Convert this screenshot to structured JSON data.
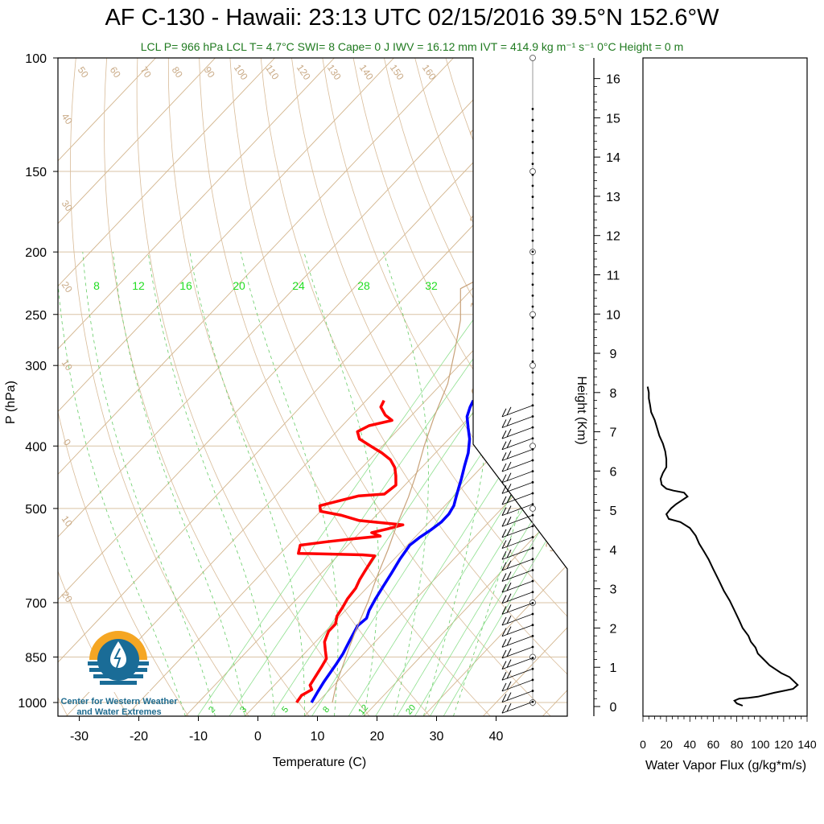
{
  "title": "AF C-130 - Hawaii: 23:13 UTC 02/15/2016  39.5°N 152.6°W",
  "subtitle": "LCL P= 966 hPa  LCL T= 4.7°C  SWI= 8  Cape= 0 J  IWV = 16.12 mm  IVT = 414.9 kg m⁻¹ s⁻¹  0°C Height = 0 m",
  "logo": {
    "line1": "Center for Western Weather",
    "line2": "and Water Extremes"
  },
  "chart_data": [
    {
      "type": "line",
      "name": "skew-t",
      "xlabel": "Temperature (C)",
      "ylabel": "P (hPa)",
      "xlim": [
        -34,
        50
      ],
      "ylim": [
        1050,
        100
      ],
      "y_scale": "log",
      "x_ticks": [
        -30,
        -20,
        -10,
        0,
        10,
        20,
        30,
        40
      ],
      "y_ticks": [
        100,
        150,
        200,
        250,
        300,
        400,
        500,
        700,
        850,
        1000
      ],
      "right_axis": {
        "label": "Height (Km)",
        "ticks": [
          0,
          1,
          2,
          3,
          4,
          5,
          6,
          7,
          8,
          9,
          10,
          11,
          12,
          13,
          14,
          15,
          16
        ]
      },
      "mixing_ratio_labels_top": [
        "8",
        "12",
        "16",
        "20",
        "24",
        "28",
        "32"
      ],
      "mixing_ratio_labels_bottom": [
        "2",
        "3",
        "5",
        "8",
        "12",
        "20"
      ],
      "dry_adiabat_labels": [
        "50",
        "60",
        "70",
        "80",
        "90",
        "100",
        "110",
        "120",
        "130",
        "140",
        "150",
        "160"
      ],
      "isotherm_labels": [
        "40",
        "30",
        "20",
        "10",
        "0",
        "10",
        "20"
      ],
      "moist_labels": [
        "30",
        "20",
        "10",
        "0",
        "10",
        "20",
        "30"
      ],
      "series": [
        {
          "color": "#0000ff",
          "points": [
            [
              9.0,
              1000
            ],
            [
              8.3,
              960
            ],
            [
              7.8,
              930
            ],
            [
              7.0,
              870
            ],
            [
              6.5,
              840
            ],
            [
              5.5,
              800
            ],
            [
              4.5,
              760
            ],
            [
              4.8,
              740
            ],
            [
              4.0,
              720
            ],
            [
              3.2,
              690
            ],
            [
              2.5,
              660
            ],
            [
              1.8,
              630
            ],
            [
              1.0,
              600
            ],
            [
              0.4,
              570
            ],
            [
              0.8,
              555
            ],
            [
              1.5,
              540
            ],
            [
              2.0,
              525
            ],
            [
              2.0,
              510
            ],
            [
              1.5,
              495
            ],
            [
              0.5,
              480
            ],
            [
              -0.5,
              465
            ],
            [
              -1.5,
              450
            ],
            [
              -3.0,
              430
            ],
            [
              -4.5,
              410
            ],
            [
              -6.5,
              390
            ],
            [
              -8.5,
              375
            ],
            [
              -10.5,
              360
            ],
            [
              -11.5,
              348
            ],
            [
              -12.0,
              340
            ]
          ]
        },
        {
          "color": "#ff0000",
          "points": [
            [
              6.5,
              1000
            ],
            [
              6.2,
              975
            ],
            [
              7.0,
              955
            ],
            [
              6.0,
              940
            ],
            [
              5.5,
              910
            ],
            [
              5.0,
              880
            ],
            [
              4.5,
              855
            ],
            [
              3.0,
              830
            ],
            [
              1.5,
              805
            ],
            [
              1.0,
              790
            ],
            [
              0.5,
              775
            ],
            [
              0.5,
              755
            ],
            [
              -0.5,
              735
            ],
            [
              -1.0,
              710
            ],
            [
              -1.5,
              690
            ],
            [
              -1.8,
              665
            ],
            [
              -2.5,
              645
            ],
            [
              -3.0,
              625
            ],
            [
              -3.5,
              605
            ],
            [
              -3.8,
              592
            ],
            [
              -6.0,
              590
            ],
            [
              -17.0,
              587
            ],
            [
              -18.0,
              570
            ],
            [
              -14.0,
              563
            ],
            [
              -10.0,
              557
            ],
            [
              -6.0,
              552
            ],
            [
              -8.0,
              545
            ],
            [
              -6.0,
              538
            ],
            [
              -4.0,
              530
            ],
            [
              -12.0,
              522
            ],
            [
              -16.0,
              512
            ],
            [
              -20.0,
              505
            ],
            [
              -21.0,
              495
            ],
            [
              -16.0,
              478
            ],
            [
              -12.0,
              475
            ],
            [
              -11.5,
              460
            ],
            [
              -13.0,
              445
            ],
            [
              -14.5,
              432
            ],
            [
              -16.5,
              420
            ],
            [
              -19.0,
              410
            ],
            [
              -22.0,
              400
            ],
            [
              -25.0,
              390
            ],
            [
              -26.5,
              380
            ],
            [
              -25.5,
              372
            ],
            [
              -22.5,
              365
            ],
            [
              -24.5,
              358
            ],
            [
              -26.5,
              348
            ],
            [
              -27.0,
              340
            ]
          ]
        },
        {
          "color": "#c8a27a",
          "points": [
            [
              12.5,
              1000
            ],
            [
              10.0,
              930
            ],
            [
              8.5,
              880
            ],
            [
              6.5,
              820
            ],
            [
              4.5,
              760
            ],
            [
              2.5,
              700
            ],
            [
              0.0,
              640
            ],
            [
              -2.5,
              580
            ],
            [
              -5.0,
              530
            ],
            [
              -7.5,
              480
            ],
            [
              -10.0,
              440
            ],
            [
              -13.0,
              400
            ],
            [
              -16.0,
              360
            ],
            [
              -19.0,
              320
            ],
            [
              -23.0,
              285
            ],
            [
              -27.0,
              255
            ],
            [
              -32.0,
              228
            ],
            [
              -26.0,
              200
            ],
            [
              -20.0,
              170
            ],
            [
              -10.0,
              140
            ],
            [
              -2.0,
              120
            ],
            [
              4.0,
              105
            ]
          ]
        }
      ]
    },
    {
      "type": "line",
      "name": "water-vapor-flux",
      "xlabel": "Water Vapor Flux (g/kg*m/s)",
      "xlim": [
        0,
        140
      ],
      "ylim": [
        0,
        16.5
      ],
      "x_ticks": [
        0,
        20,
        40,
        60,
        80,
        100,
        120,
        140
      ],
      "series": [
        {
          "color": "#000000",
          "points": [
            [
              85,
              0.02
            ],
            [
              80,
              0.08
            ],
            [
              78,
              0.15
            ],
            [
              82,
              0.2
            ],
            [
              90,
              0.22
            ],
            [
              98,
              0.25
            ],
            [
              105,
              0.3
            ],
            [
              112,
              0.35
            ],
            [
              120,
              0.4
            ],
            [
              128,
              0.45
            ],
            [
              132,
              0.55
            ],
            [
              125,
              0.75
            ],
            [
              118,
              0.85
            ],
            [
              113,
              0.95
            ],
            [
              108,
              1.05
            ],
            [
              103,
              1.2
            ],
            [
              98,
              1.35
            ],
            [
              96,
              1.5
            ],
            [
              92,
              1.65
            ],
            [
              90,
              1.8
            ],
            [
              85,
              2.0
            ],
            [
              82,
              2.2
            ],
            [
              78,
              2.45
            ],
            [
              74,
              2.7
            ],
            [
              69,
              2.95
            ],
            [
              65,
              3.2
            ],
            [
              60,
              3.5
            ],
            [
              56,
              3.75
            ],
            [
              52,
              3.95
            ],
            [
              48,
              4.15
            ],
            [
              45,
              4.35
            ],
            [
              40,
              4.55
            ],
            [
              32,
              4.7
            ],
            [
              22,
              4.78
            ],
            [
              20,
              4.9
            ],
            [
              24,
              5.05
            ],
            [
              28,
              5.15
            ],
            [
              33,
              5.25
            ],
            [
              38,
              5.35
            ],
            [
              35,
              5.45
            ],
            [
              26,
              5.5
            ],
            [
              20,
              5.55
            ],
            [
              16,
              5.65
            ],
            [
              15,
              5.8
            ],
            [
              17,
              5.95
            ],
            [
              20,
              6.1
            ],
            [
              20,
              6.3
            ],
            [
              19,
              6.5
            ],
            [
              17,
              6.7
            ],
            [
              14,
              6.9
            ],
            [
              12,
              7.1
            ],
            [
              10,
              7.3
            ],
            [
              7,
              7.5
            ],
            [
              6,
              7.7
            ],
            [
              5,
              7.85
            ],
            [
              5,
              8.0
            ],
            [
              4,
              8.15
            ]
          ]
        }
      ]
    }
  ]
}
